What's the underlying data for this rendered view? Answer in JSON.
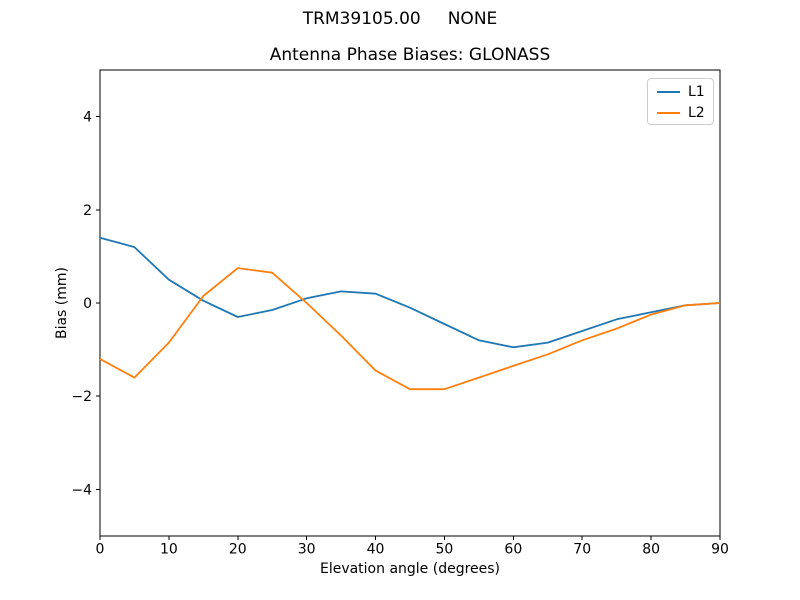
{
  "figure": {
    "suptitle": "TRM39105.00     NONE",
    "background_color": "#ffffff",
    "spine_color": "#000000"
  },
  "chart_data": {
    "type": "line",
    "title": "Antenna Phase Biases: GLONASS",
    "xlabel": "Elevation angle (degrees)",
    "ylabel": "Bias (mm)",
    "xlim": [
      0,
      90
    ],
    "ylim": [
      -5,
      5
    ],
    "x_ticks": [
      0,
      10,
      20,
      30,
      40,
      50,
      60,
      70,
      80,
      90
    ],
    "y_ticks": [
      -4,
      -2,
      0,
      2,
      4
    ],
    "grid": false,
    "legend_position": "upper right",
    "x": [
      0,
      5,
      10,
      15,
      20,
      25,
      30,
      35,
      40,
      45,
      50,
      55,
      60,
      65,
      70,
      75,
      80,
      85,
      90
    ],
    "series": [
      {
        "name": "L1",
        "color": "#1f77b4",
        "values": [
          1.4,
          1.2,
          0.5,
          0.05,
          -0.3,
          -0.15,
          0.1,
          0.25,
          0.2,
          -0.1,
          -0.45,
          -0.8,
          -0.95,
          -0.85,
          -0.6,
          -0.35,
          -0.2,
          -0.05,
          0.0
        ]
      },
      {
        "name": "L2",
        "color": "#ff7f0e",
        "values": [
          -1.2,
          -1.6,
          -0.85,
          0.15,
          0.75,
          0.65,
          0.0,
          -0.7,
          -1.45,
          -1.85,
          -1.85,
          -1.6,
          -1.35,
          -1.1,
          -0.8,
          -0.55,
          -0.25,
          -0.05,
          0.0
        ]
      }
    ]
  }
}
